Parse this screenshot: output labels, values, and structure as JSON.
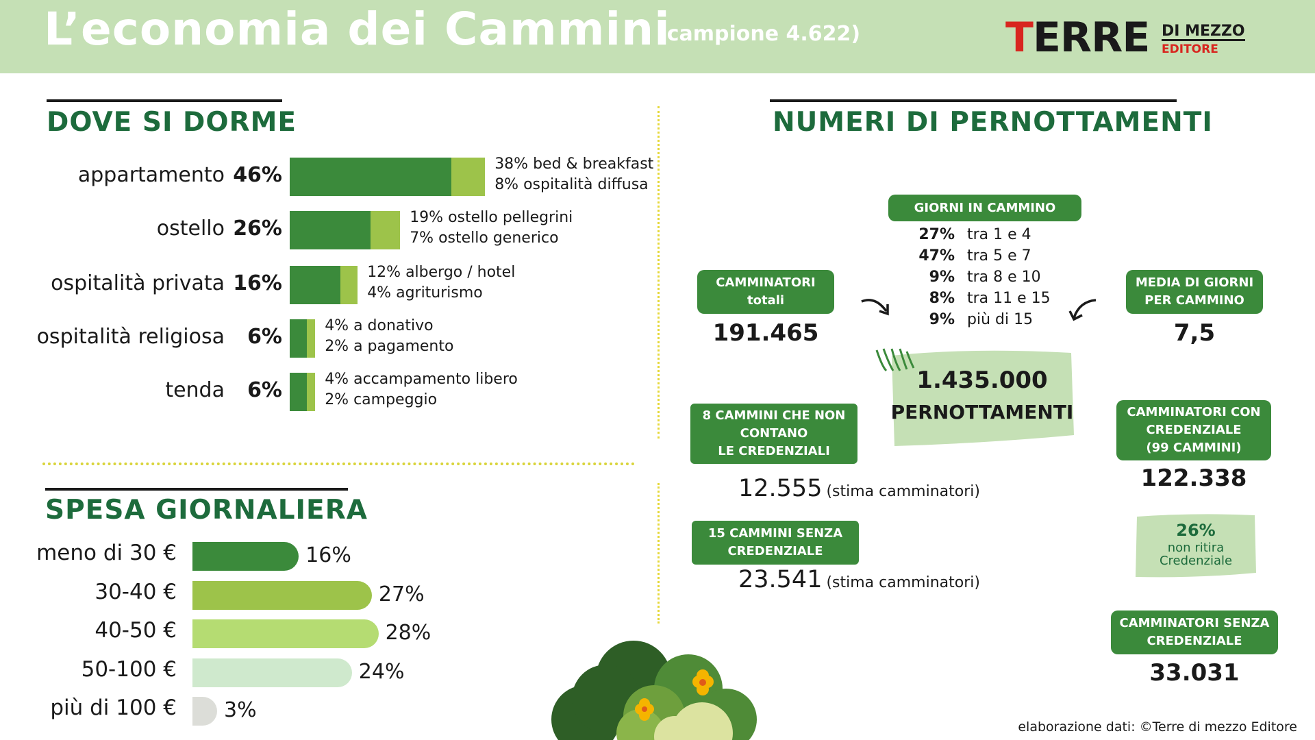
{
  "header": {
    "title": "L’economia dei Cammini",
    "subtitle": "(campione 4.622)",
    "logo_t": "T",
    "logo_rest": "ERRE",
    "logo_line1": "DI MEZZO",
    "logo_line2": "EDITORE"
  },
  "dove": {
    "title": "DOVE SI DORME"
  },
  "spesa": {
    "title": "SPESA GIORNALIERA"
  },
  "pernottamenti": {
    "title": "NUMERI DI PERNOTTAMENTI",
    "giorni_label": "GIORNI IN CAMMINO",
    "giorni": [
      {
        "pct": "27%",
        "label": "tra 1 e 4"
      },
      {
        "pct": "47%",
        "label": "tra 5 e 7"
      },
      {
        "pct": "9%",
        "label": "tra 8 e 10"
      },
      {
        "pct": "8%",
        "label": "tra 11 e 15"
      },
      {
        "pct": "9%",
        "label": "più di 15"
      }
    ],
    "camminatori_label_1": "CAMMINATORI",
    "camminatori_label_2": "totali",
    "camminatori_value": "191.465",
    "media_label_1": "MEDIA DI GIORNI",
    "media_label_2": "PER CAMMINO",
    "media_value": "7,5",
    "totale_value": "1.435.000",
    "totale_label": "PERNOTTAMENTI",
    "non_contano_1": "8 CAMMINI CHE NON",
    "non_contano_2": "CONTANO",
    "non_contano_3": "LE CREDENZIALI",
    "non_contano_value": "12.555",
    "non_contano_note": "(stima camminatori)",
    "senza_1": "15 CAMMINI SENZA",
    "senza_2": "CREDENZIALE",
    "senza_value": "23.541",
    "senza_note": "(stima camminatori)",
    "con_cred_1": "CAMMINATORI CON",
    "con_cred_2": "CREDENZIALE",
    "con_cred_3": "(99 CAMMINI)",
    "con_cred_value": "122.338",
    "non_ritira_pct": "26%",
    "non_ritira_1": "non ritira",
    "non_ritira_2": "Credenziale",
    "senza_cam_1": "CAMMINATORI SENZA",
    "senza_cam_2": "CREDENZIALE",
    "senza_cam_value": "33.031"
  },
  "credits": "elaborazione dati: ©Terre di mezzo Editore",
  "colors": {
    "dark_green": "#3b8a3b",
    "light_green": "#9dc34a",
    "title_green": "#1d6b3c",
    "header_bg": "#c5e0b5"
  },
  "chart_data": [
    {
      "type": "bar",
      "title": "DOVE SI DORME",
      "categories": [
        "appartamento",
        "ostello",
        "ospitalità privata",
        "ospitalità religiosa",
        "tenda"
      ],
      "totals": [
        46,
        26,
        16,
        6,
        6
      ],
      "totals_labels": [
        "46%",
        "26%",
        "16%",
        "6%",
        "6%"
      ],
      "series": [
        {
          "values": [
            38,
            19,
            12,
            4,
            4
          ],
          "labels": [
            "38% bed & breakfast",
            "19% ostello pellegrini",
            "12% albergo / hotel",
            "4% a donativo",
            "4% accampamento libero"
          ]
        },
        {
          "values": [
            8,
            7,
            4,
            2,
            2
          ],
          "labels": [
            "8% ospitalità diffusa",
            "7% ostello generico",
            "4% agriturismo",
            "2% a pagamento",
            "2% campeggio"
          ]
        }
      ]
    },
    {
      "type": "bar",
      "title": "SPESA GIORNALIERA",
      "categories": [
        "meno di 30 €",
        "30-40 €",
        "40-50 €",
        "50-100 €",
        "più di 100 €"
      ],
      "values": [
        16,
        27,
        28,
        24,
        3
      ],
      "value_labels": [
        "16%",
        "27%",
        "28%",
        "24%",
        "3%"
      ],
      "colors": [
        "#3b8a3b",
        "#9dc34a",
        "#b5dc72",
        "#cfe9cd",
        "#dcddd8"
      ]
    }
  ]
}
